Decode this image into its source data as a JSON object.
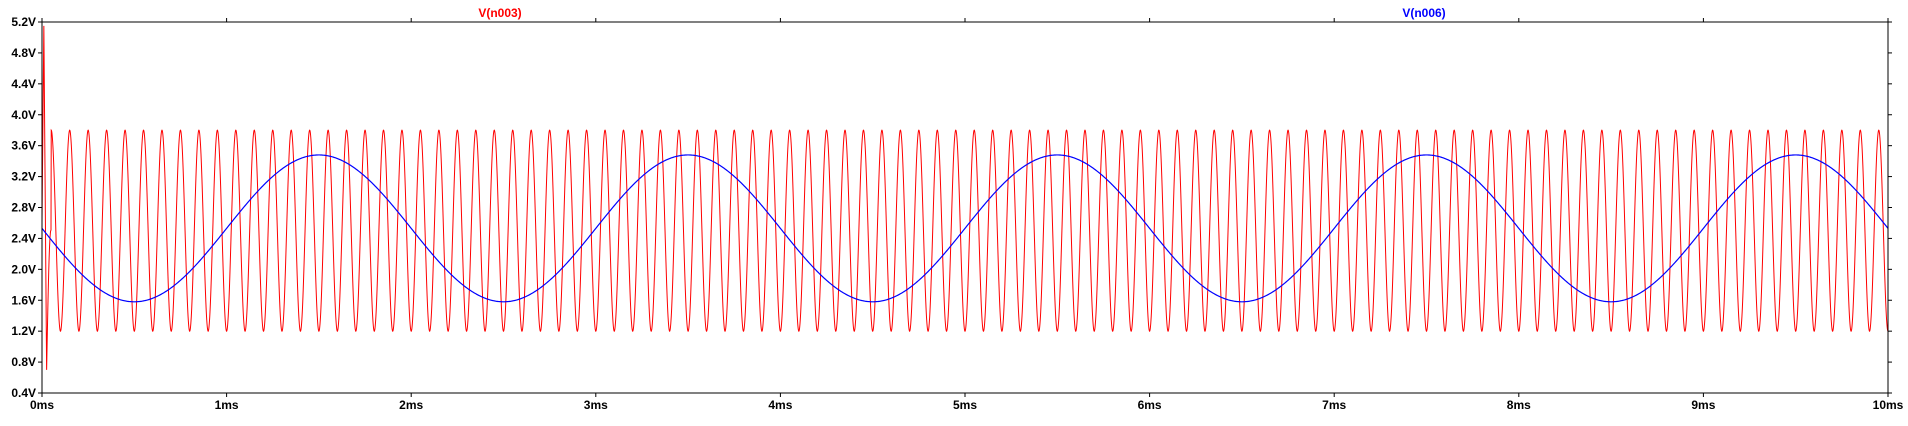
{
  "chart_data": {
    "type": "line",
    "xlabel": "",
    "ylabel": "",
    "xlim": [
      0,
      10
    ],
    "ylim": [
      0.4,
      5.2
    ],
    "grid": false,
    "x_ticks": [
      {
        "value": 0,
        "label": "0ms"
      },
      {
        "value": 1,
        "label": "1ms"
      },
      {
        "value": 2,
        "label": "2ms"
      },
      {
        "value": 3,
        "label": "3ms"
      },
      {
        "value": 4,
        "label": "4ms"
      },
      {
        "value": 5,
        "label": "5ms"
      },
      {
        "value": 6,
        "label": "6ms"
      },
      {
        "value": 7,
        "label": "7ms"
      },
      {
        "value": 8,
        "label": "8ms"
      },
      {
        "value": 9,
        "label": "9ms"
      },
      {
        "value": 10,
        "label": "10ms"
      }
    ],
    "y_ticks": [
      {
        "value": 0.4,
        "label": "0.4V"
      },
      {
        "value": 0.8,
        "label": "0.8V"
      },
      {
        "value": 1.2,
        "label": "1.2V"
      },
      {
        "value": 1.6,
        "label": "1.6V"
      },
      {
        "value": 2.0,
        "label": "2.0V"
      },
      {
        "value": 2.4,
        "label": "2.4V"
      },
      {
        "value": 2.8,
        "label": "2.8V"
      },
      {
        "value": 3.2,
        "label": "3.2V"
      },
      {
        "value": 3.6,
        "label": "3.6V"
      },
      {
        "value": 4.0,
        "label": "4.0V"
      },
      {
        "value": 4.4,
        "label": "4.4V"
      },
      {
        "value": 4.8,
        "label": "4.8V"
      },
      {
        "value": 5.2,
        "label": "5.2V"
      }
    ],
    "series": [
      {
        "name": "V(n003)",
        "color": "#ff0000",
        "shape": "sinusoid",
        "frequency_khz": 10,
        "min": 1.2,
        "max": 3.8,
        "startup_peak": 5.15,
        "startup_trough": 0.7
      },
      {
        "name": "V(n006)",
        "color": "#0000ff",
        "shape": "sinusoid",
        "frequency_khz": 0.5,
        "min": 1.58,
        "max": 3.48,
        "value_at_0ms": 2.53,
        "first_minimum_ms": 0.5
      }
    ]
  }
}
